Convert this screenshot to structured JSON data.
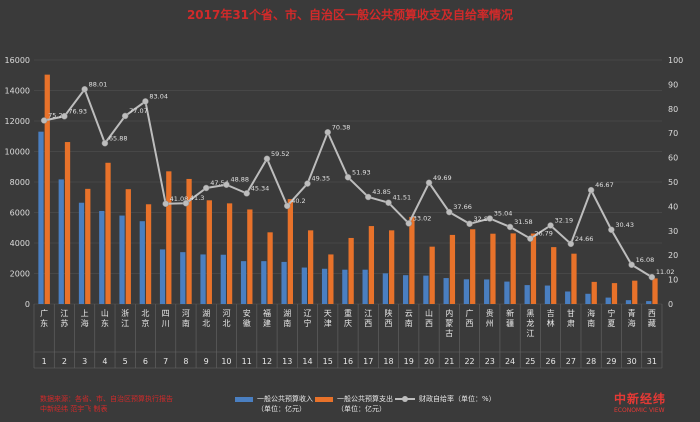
{
  "title": "2017年31个省、市、自治区一般公共预算收支及自给率情况",
  "footnote_lines": [
    "数据来源：各省、市、自治区预算执行报告",
    "中新经纬 范宇飞 制表"
  ],
  "logo": {
    "cn": "中新经纬",
    "en": "ECONOMIC VIEW"
  },
  "colors": {
    "revenue": "#4a7fc1",
    "expenditure": "#e8722a",
    "ratio": "#bdbdbd",
    "title": "#d12a2a"
  },
  "chart_data": {
    "type": "bar",
    "categories": [
      "广东",
      "江苏",
      "上海",
      "山东",
      "浙江",
      "北京",
      "四川",
      "河南",
      "湖北",
      "河北",
      "安徽",
      "福建",
      "湖南",
      "辽宁",
      "天津",
      "重庆",
      "江西",
      "陕西",
      "云南",
      "山西",
      "内蒙古",
      "广西",
      "贵州",
      "新疆",
      "黑龙江",
      "吉林",
      "甘肃",
      "海南",
      "宁夏",
      "青海",
      "西藏"
    ],
    "x_numbers": [
      "1",
      "2",
      "3",
      "4",
      "5",
      "6",
      "7",
      "8",
      "9",
      "10",
      "11",
      "12",
      "13",
      "14",
      "15",
      "16",
      "17",
      "18",
      "19",
      "20",
      "21",
      "22",
      "23",
      "24",
      "25",
      "26",
      "27",
      "28",
      "29",
      "30",
      "31"
    ],
    "series": [
      {
        "name": "一般公共预算收入",
        "unit": "（单位：亿元）",
        "values": [
          11300,
          8170,
          6640,
          6100,
          5800,
          5430,
          3580,
          3400,
          3250,
          3230,
          2810,
          2810,
          2760,
          2390,
          2310,
          2250,
          2250,
          2010,
          1890,
          1860,
          1700,
          1620,
          1610,
          1470,
          1240,
          1210,
          820,
          670,
          420,
          250,
          190
        ]
      },
      {
        "name": "一般公共预算支出",
        "unit": "（单位：亿元）",
        "values": [
          15040,
          10620,
          7550,
          9260,
          7530,
          6540,
          8700,
          8200,
          6800,
          6600,
          6200,
          4700,
          6880,
          4830,
          3250,
          4330,
          5110,
          4830,
          5710,
          3760,
          4530,
          4900,
          4610,
          4630,
          4620,
          3730,
          3300,
          1450,
          1370,
          1530,
          1680
        ]
      },
      {
        "name": "财政自给率",
        "unit": "（单位：%）",
        "values": [
          75.22,
          76.93,
          88.01,
          65.88,
          77.07,
          83.04,
          41.08,
          41.3,
          47.54,
          48.88,
          45.34,
          59.52,
          40.2,
          49.35,
          70.38,
          51.93,
          43.85,
          41.51,
          33.02,
          49.69,
          37.66,
          32.87,
          35.04,
          31.58,
          26.79,
          32.19,
          24.66,
          46.67,
          30.43,
          16.08,
          11.02
        ]
      }
    ],
    "ratio_labels": [
      "75.22",
      "76.93",
      "88.01",
      "65.88",
      "77.07",
      "83.04",
      "41.08",
      "41.3",
      "47.54",
      "48.88",
      "45.34",
      "59.52",
      "40.2",
      "49.35",
      "70.38",
      "51.93",
      "43.85",
      "41.51",
      "33.02",
      "49.69",
      "37.66",
      "32.87",
      "35.04",
      "31.58",
      "26.79",
      "32.19",
      "24.66",
      "46.67",
      "30.43",
      "16.08",
      "11.02"
    ],
    "y_left": {
      "min": 0,
      "max": 16000,
      "ticks": [
        "0",
        "2000",
        "4000",
        "6000",
        "8000",
        "10000",
        "12000",
        "14000",
        "16000"
      ]
    },
    "y_right": {
      "min": 0,
      "max": 100,
      "ticks": [
        "0",
        "10",
        "20",
        "30",
        "40",
        "50",
        "60",
        "70",
        "80",
        "90",
        "100"
      ]
    },
    "grid": true,
    "legend": "bottom"
  }
}
